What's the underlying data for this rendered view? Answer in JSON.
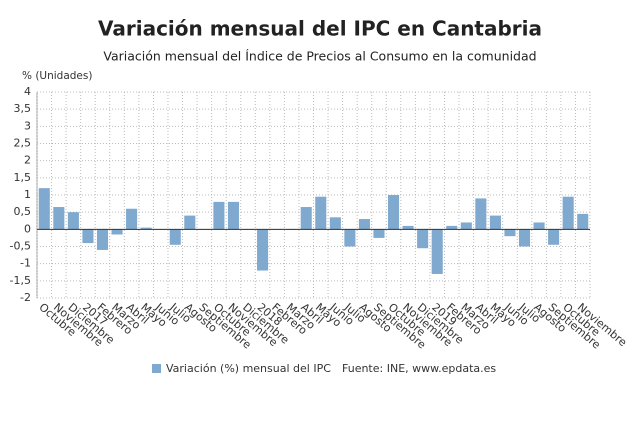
{
  "chart_data": {
    "type": "bar",
    "title": "Variación mensual del IPC en Cantabria",
    "subtitle": "Variación mensual del Índice de Precios al Consumo en la comunidad",
    "y_label": "% (Unidades)",
    "source": "Fuente: INE, www.epdata.es",
    "categories": [
      "Octubre",
      "Noviembre",
      "Diciembre",
      "2017",
      "Febrero",
      "Marzo",
      "Abril",
      "Mayo",
      "Junio",
      "Julio",
      "Agosto",
      "Septiembre",
      "Octubre",
      "Noviembre",
      "Diciembre",
      "2018",
      "Febrero",
      "Marzo",
      "Abril",
      "Mayo",
      "Junio",
      "Julio",
      "Agosto",
      "Septiembre",
      "Octubre",
      "Noviembre",
      "Diciembre",
      "2019",
      "Febrero",
      "Marzo",
      "Abril",
      "Mayo",
      "Junio",
      "Julio",
      "Agosto",
      "Septiembre",
      "Octubre",
      "Noviembre"
    ],
    "series": [
      {
        "name": "Variación (%) mensual del IPC",
        "color": "#7fa9cf",
        "values": [
          1.2,
          0.65,
          0.5,
          -0.4,
          -0.6,
          -0.15,
          0.6,
          0.05,
          0,
          -0.45,
          0.4,
          0,
          0.8,
          0.8,
          0,
          -1.2,
          0,
          0,
          0.65,
          0.95,
          0.35,
          -0.5,
          0.3,
          -0.25,
          1.0,
          0.1,
          -0.55,
          -1.3,
          0.1,
          0.2,
          0.9,
          0.4,
          -0.2,
          -0.5,
          0.2,
          -0.45,
          0.95,
          0.45
        ]
      }
    ],
    "ylim": [
      -2,
      4
    ],
    "yticks": [
      {
        "value": -2,
        "label": "-2"
      },
      {
        "value": -1.5,
        "label": "-1,5"
      },
      {
        "value": -1,
        "label": "-1"
      },
      {
        "value": -0.5,
        "label": "-0,5"
      },
      0,
      {
        "value": 0.5,
        "label": "0,5"
      },
      1,
      {
        "value": 1.5,
        "label": "1,5"
      },
      2,
      {
        "value": 2.5,
        "label": "2,5"
      },
      3,
      {
        "value": 3.5,
        "label": "3,5"
      },
      4
    ],
    "grid": true
  }
}
